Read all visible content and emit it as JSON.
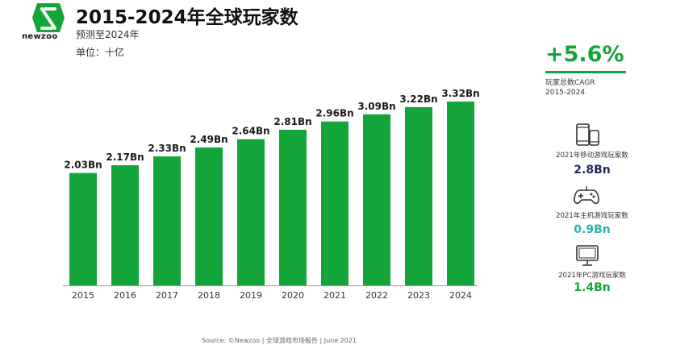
{
  "header": {
    "logo_text": "newzoo",
    "title": "2015-2024年全球玩家数",
    "subtitle": "预测至2024年",
    "unit": "单位：十亿"
  },
  "colors": {
    "bar": "#14a53a",
    "accent": "#13a538",
    "navy": "#1d2a5a",
    "teal": "#2bb3b1"
  },
  "sidebar": {
    "cagr_value": "+5.6%",
    "cagr_label_1": "玩家总数CAGR",
    "cagr_label_2": "2015-2024",
    "stats": [
      {
        "icon": "mobile-devices-icon",
        "label": "2021年移动游戏玩家数",
        "value": "2.8Bn",
        "color": "#1d2a5a"
      },
      {
        "icon": "gamepad-icon",
        "label": "2021年主机游戏玩家数",
        "value": "0.9Bn",
        "color": "#2bb3b1"
      },
      {
        "icon": "monitor-icon",
        "label": "2021年PC游戏玩家数",
        "value": "1.4Bn",
        "color": "#13a538"
      }
    ]
  },
  "source": "Source: ©Newzoo | 全球游戏市场报告 | June 2021",
  "chart_data": {
    "type": "bar",
    "title": "2015-2024年全球玩家数",
    "categories": [
      "2015",
      "2016",
      "2017",
      "2018",
      "2019",
      "2020",
      "2021",
      "2022",
      "2023",
      "2024"
    ],
    "values": [
      2.03,
      2.17,
      2.33,
      2.49,
      2.64,
      2.81,
      2.96,
      3.09,
      3.22,
      3.32
    ],
    "data_labels": [
      "2.03Bn",
      "2.17Bn",
      "2.33Bn",
      "2.49Bn",
      "2.64Bn",
      "2.81Bn",
      "2.96Bn",
      "3.09Bn",
      "3.22Bn",
      "3.32Bn"
    ],
    "ylim": [
      0,
      3.32
    ],
    "grid": false,
    "legend": "none"
  }
}
